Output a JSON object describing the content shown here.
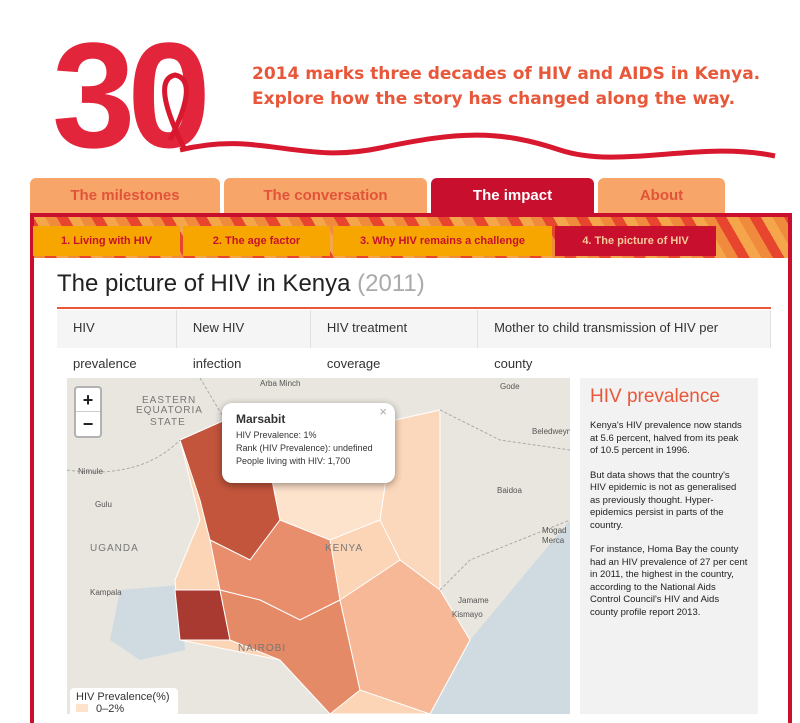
{
  "header": {
    "logo": "30",
    "tagline": [
      "2014 marks three decades of HIV and AIDS in Kenya.",
      "Explore how the story has changed along the way."
    ]
  },
  "tabs": [
    "The milestones",
    "The conversation",
    "The impact",
    "About"
  ],
  "subtabs": [
    "1. Living with HIV",
    "2. The age factor",
    "3. Why HIV remains a challenge",
    "4. The picture of HIV"
  ],
  "page": {
    "title": "The picture of HIV in Kenya",
    "year": "(2011)"
  },
  "map_tabs": [
    "HIV prevalence",
    "New HIV infection",
    "HIV treatment coverage",
    "Mother to child transmission of HIV per county"
  ],
  "map": {
    "zoom_in": "+",
    "zoom_out": "−",
    "labels": [
      "Arba Minch",
      "EASTERN",
      "EQUATORIA",
      "STATE",
      "Gode",
      "Beledweyne",
      "Nimule",
      "Gulu",
      "Baidoa",
      "UGANDA",
      "KENYA",
      "Mogad",
      "Merca",
      "Kampala",
      "Jamame",
      "Kismayo",
      "NAIROBI"
    ],
    "popup": {
      "close": "×",
      "title": "Marsabit",
      "lines": [
        "HIV Prevalence: 1%",
        "Rank (HIV Prevalence): undefined",
        "People living with HIV: 1,700"
      ]
    },
    "legend": {
      "title": "HIV Prevalence(%)",
      "items": [
        "0–2%"
      ]
    }
  },
  "sidebar": {
    "title": "HIV prevalence",
    "paragraphs": [
      "Kenya's HIV prevalence now stands at 5.6 percent, halved from its peak of 10.5 percent in 1996.",
      "But data shows that the country's HIV epidemic is not as generalised as previously thought. Hyper-epidemics persist in parts of the country.",
      "For instance, Homa Bay the county had an HIV prevalence of 27 per cent in 2011, the highest in the country, according to the National Aids Control Council's HIV and Aids county profile report 2013."
    ]
  }
}
